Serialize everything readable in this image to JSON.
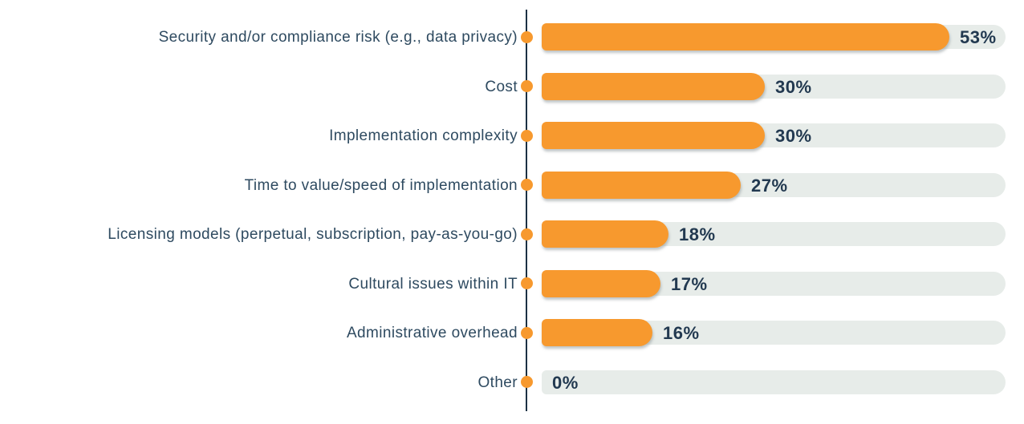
{
  "chart_data": {
    "type": "bar",
    "orientation": "horizontal",
    "title": "",
    "xlabel": "",
    "ylabel": "",
    "categories": [
      "Security and/or compliance risk (e.g., data privacy)",
      "Cost",
      "Implementation complexity",
      "Time to value/speed of implementation",
      "Licensing models (perpetual, subscription, pay-as-you-go)",
      "Cultural issues within IT",
      "Administrative overhead",
      "Other"
    ],
    "values": [
      53,
      30,
      30,
      27,
      18,
      17,
      16,
      0
    ],
    "value_labels": [
      "53%",
      "30%",
      "30%",
      "27%",
      "18%",
      "17%",
      "16%",
      "0%"
    ],
    "xlim": [
      0,
      60
    ],
    "grid": false,
    "legend": false
  },
  "colors": {
    "bar": "#F7992E",
    "dot": "#F7992E",
    "track": "#E7ECE9",
    "category_text": "#2E4A60",
    "value_text": "#223950",
    "axis": "#1C3144",
    "background": "#FFFFFF"
  }
}
